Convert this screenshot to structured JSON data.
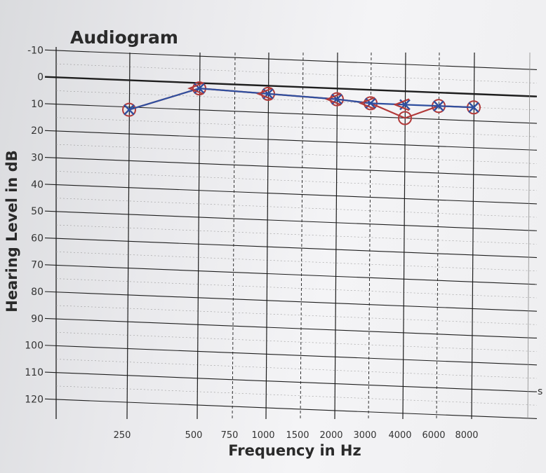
{
  "chart_data": {
    "type": "line",
    "title": "Audiogram",
    "xlabel": "Frequency in Hz",
    "ylabel": "Hearing Level in dB",
    "x_ticks": [
      "250",
      "500",
      "750",
      "1000",
      "1500",
      "2000",
      "3000",
      "4000",
      "6000",
      "8000"
    ],
    "y_ticks": [
      "-10",
      "0",
      "10",
      "20",
      "30",
      "40",
      "50",
      "60",
      "70",
      "80",
      "90",
      "100",
      "110",
      "120"
    ],
    "ylim": [
      -10,
      120
    ],
    "y_inverted": true,
    "grid": true,
    "edge_fragment": "s",
    "colors": {
      "right": "#b23a3a",
      "left": "#2f4f9f",
      "grid": "#1e1e1e"
    },
    "series": [
      {
        "marker": "circle",
        "color": "#b23a3a",
        "x": [
          "250",
          "500",
          "1000",
          "2000",
          "3000",
          "4000",
          "6000",
          "8000"
        ],
        "values": [
          11,
          2,
          3,
          4,
          5,
          10,
          5,
          5
        ]
      },
      {
        "marker": "x",
        "color": "#2f4f9f",
        "x": [
          "250",
          "500",
          "1000",
          "2000",
          "3000",
          "4000",
          "6000",
          "8000"
        ],
        "values": [
          11,
          2,
          3,
          4,
          5,
          5,
          5,
          5
        ]
      },
      {
        "marker": "bracket-left",
        "color": "#b23a3a",
        "x": [
          "500",
          "1000",
          "2000",
          "3000",
          "4000"
        ],
        "values": [
          2,
          3,
          4,
          5,
          5
        ]
      }
    ]
  }
}
